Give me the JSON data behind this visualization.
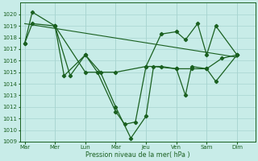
{
  "background_color": "#c8ece8",
  "grid_color": "#a8d4d0",
  "line_color": "#1a6020",
  "xlabel": "Pression niveau de la mer( hPa )",
  "ylim": [
    1009,
    1021
  ],
  "yticks": [
    1009,
    1010,
    1011,
    1012,
    1013,
    1014,
    1015,
    1016,
    1017,
    1018,
    1019,
    1020
  ],
  "xtick_labels": [
    "Mar",
    "Mer",
    "Lun",
    "Mar",
    "Jeu",
    "Ven",
    "Sam",
    "Dim"
  ],
  "day_positions": [
    0,
    1,
    2,
    3,
    4,
    5,
    6,
    7
  ],
  "xlim": [
    -0.15,
    7.6
  ],
  "series_flat_x": [
    0.0,
    0.25,
    1.0,
    2.0,
    3.0,
    4.0,
    4.5,
    5.0,
    5.5,
    6.0,
    6.5,
    7.0
  ],
  "series_flat_y": [
    1017.5,
    1019.2,
    1019.0,
    1015.0,
    1015.0,
    1015.5,
    1015.5,
    1015.3,
    1015.3,
    1015.3,
    1016.2,
    1016.5
  ],
  "series_deep_x": [
    0.0,
    0.25,
    1.0,
    1.3,
    2.0,
    2.5,
    3.0,
    3.5,
    4.0,
    4.25,
    5.0,
    5.3,
    5.5,
    6.0,
    6.3,
    7.0
  ],
  "series_deep_y": [
    1017.5,
    1020.2,
    1019.0,
    1014.7,
    1016.5,
    1015.0,
    1012.0,
    1009.3,
    1011.2,
    1015.5,
    1015.3,
    1013.0,
    1015.5,
    1015.3,
    1014.2,
    1016.5
  ],
  "series_mid_x": [
    1.0,
    1.5,
    2.0,
    2.4,
    3.0,
    3.3,
    3.65,
    4.0,
    4.5,
    5.0,
    5.3,
    5.7,
    6.0,
    6.3,
    7.0
  ],
  "series_mid_y": [
    1019.0,
    1014.7,
    1016.5,
    1015.0,
    1011.6,
    1010.5,
    1010.7,
    1015.5,
    1018.3,
    1018.5,
    1017.8,
    1019.2,
    1016.5,
    1019.0,
    1016.5
  ],
  "trend_x": [
    0.0,
    7.0
  ],
  "trend_y": [
    1019.2,
    1016.3
  ]
}
